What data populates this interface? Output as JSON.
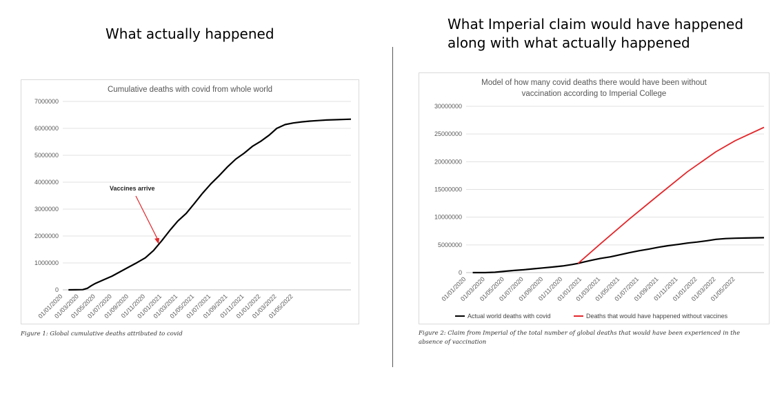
{
  "headings": {
    "left": "What actually happened",
    "right": "What Imperial claim would have happened along with what actually happened"
  },
  "captions": {
    "figure1": "Figure 1: Global cumulative deaths attributed to covid",
    "figure2": "Figure 2: Claim from Imperial of the total number of global deaths that would have been experienced in the absence of vaccination"
  },
  "colors": {
    "actual": "#000000",
    "model": "#e3262a",
    "annotation_arrow": "#e3262a",
    "grid": "#e0e0e0"
  },
  "chart_data": [
    {
      "type": "line",
      "title": "Cumulative deaths with covid from whole world",
      "xlabel": "",
      "ylabel": "",
      "ylim": [
        0,
        7000000
      ],
      "yticks": [
        0,
        1000000,
        2000000,
        3000000,
        4000000,
        5000000,
        6000000,
        7000000
      ],
      "ytick_labels": [
        "0",
        "1000000",
        "2000000",
        "3000000",
        "4000000",
        "5000000",
        "6000000",
        "7000000"
      ],
      "xlim": [
        "2020-01-01",
        "2022-11-30"
      ],
      "xtick_labels": [
        "01/01/2020",
        "01/03/2020",
        "01/05/2020",
        "01/07/2020",
        "01/09/2020",
        "01/11/2020",
        "01/01/2021",
        "01/03/2021",
        "01/05/2021",
        "01/07/2021",
        "01/09/2021",
        "01/11/2021",
        "01/01/2022",
        "01/03/2022",
        "01/05/2022"
      ],
      "grid": true,
      "legend": "none",
      "annotation": {
        "text": "Vaccines arrive",
        "x": "2020-12-20",
        "y": 1700000
      },
      "series": [
        {
          "x": [
            "2020-01-22",
            "2020-02-15",
            "2020-03-15",
            "2020-04-01",
            "2020-04-15",
            "2020-05-01",
            "2020-06-01",
            "2020-07-01",
            "2020-08-01",
            "2020-09-01",
            "2020-10-01",
            "2020-11-01",
            "2020-12-01",
            "2021-01-01",
            "2021-02-01",
            "2021-03-01",
            "2021-04-01",
            "2021-05-01",
            "2021-06-01",
            "2021-07-01",
            "2021-08-01",
            "2021-09-01",
            "2021-10-01",
            "2021-11-01",
            "2021-12-01",
            "2022-01-01",
            "2022-02-01",
            "2022-03-01",
            "2022-04-01",
            "2022-05-01",
            "2022-06-01",
            "2022-07-01",
            "2022-08-01",
            "2022-09-01",
            "2022-10-01",
            "2022-11-30"
          ],
          "values": [
            0,
            2000,
            8000,
            60000,
            150000,
            240000,
            380000,
            510000,
            680000,
            850000,
            1010000,
            1190000,
            1460000,
            1830000,
            2230000,
            2560000,
            2840000,
            3210000,
            3600000,
            3940000,
            4250000,
            4580000,
            4860000,
            5080000,
            5330000,
            5520000,
            5750000,
            6000000,
            6140000,
            6200000,
            6240000,
            6270000,
            6290000,
            6310000,
            6320000,
            6340000
          ]
        }
      ]
    },
    {
      "type": "line",
      "title": "Model of how many covid deaths there would have been without vaccination according to Imperial College",
      "xlabel": "",
      "ylabel": "",
      "ylim": [
        0,
        30000000
      ],
      "yticks": [
        0,
        5000000,
        10000000,
        15000000,
        20000000,
        25000000,
        30000000
      ],
      "ytick_labels": [
        "0",
        "5000000",
        "10000000",
        "15000000",
        "20000000",
        "25000000",
        "30000000"
      ],
      "xlim": [
        "2020-01-01",
        "2022-07-31"
      ],
      "xtick_labels": [
        "01/01/2020",
        "01/03/2020",
        "01/05/2020",
        "01/07/2020",
        "01/09/2020",
        "01/11/2020",
        "01/01/2021",
        "01/03/2021",
        "01/05/2021",
        "01/07/2021",
        "01/09/2021",
        "01/11/2021",
        "01/01/2022",
        "01/03/2022",
        "01/05/2022"
      ],
      "grid": true,
      "legend": "bottom",
      "series": [
        {
          "name": "Actual world deaths with covid",
          "x": [
            "2020-01-22",
            "2020-03-01",
            "2020-04-01",
            "2020-05-01",
            "2020-06-01",
            "2020-07-01",
            "2020-08-01",
            "2020-09-01",
            "2020-10-01",
            "2020-11-01",
            "2020-12-01",
            "2020-12-20",
            "2021-01-01",
            "2021-02-01",
            "2021-03-01",
            "2021-04-01",
            "2021-05-01",
            "2021-06-01",
            "2021-07-01",
            "2021-08-01",
            "2021-09-01",
            "2021-10-01",
            "2021-11-01",
            "2021-12-01",
            "2022-01-01",
            "2022-02-01",
            "2022-03-01",
            "2022-04-01",
            "2022-05-01",
            "2022-06-01",
            "2022-07-31"
          ],
          "values": [
            0,
            3000,
            60000,
            240000,
            380000,
            510000,
            680000,
            850000,
            1010000,
            1190000,
            1460000,
            1650000,
            1830000,
            2230000,
            2560000,
            2840000,
            3210000,
            3600000,
            3940000,
            4250000,
            4580000,
            4860000,
            5080000,
            5330000,
            5520000,
            5750000,
            6000000,
            6140000,
            6200000,
            6240000,
            6300000
          ]
        },
        {
          "name": "Deaths that would have happened without vaccines",
          "x": [
            "2020-12-20",
            "2021-03-01",
            "2021-06-01",
            "2021-09-01",
            "2021-12-01",
            "2022-03-01",
            "2022-05-01",
            "2022-07-31"
          ],
          "values": [
            1650000,
            5200000,
            9700000,
            14000000,
            18200000,
            21800000,
            23800000,
            26200000
          ]
        }
      ]
    }
  ]
}
